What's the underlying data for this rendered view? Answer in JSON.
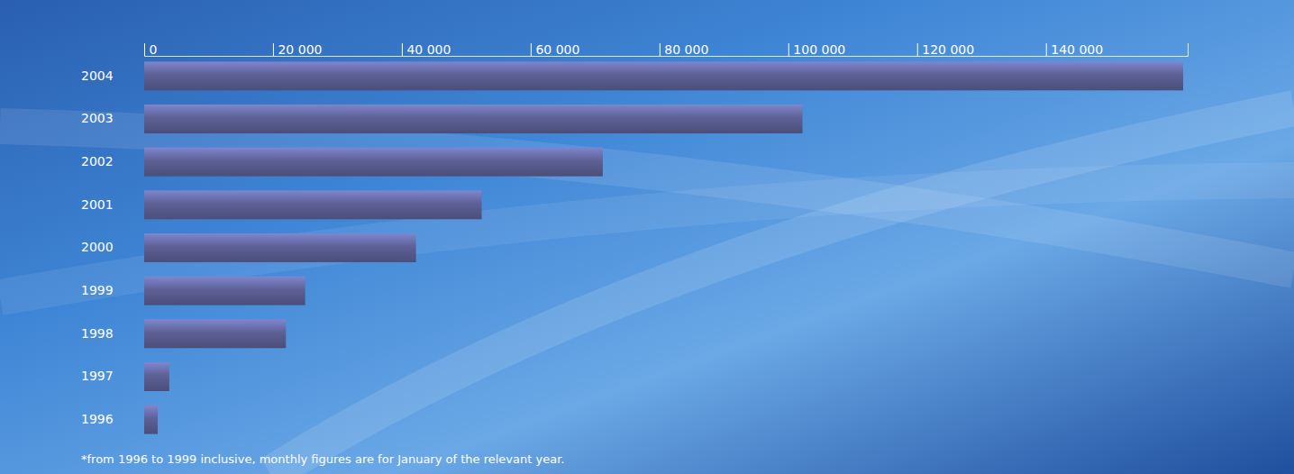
{
  "chart_data": {
    "type": "bar",
    "orientation": "horizontal",
    "categories": [
      "2004",
      "2003",
      "2002",
      "2001",
      "2000",
      "1999",
      "1998",
      "1997",
      "1996"
    ],
    "values": [
      161300,
      102200,
      71200,
      52400,
      42200,
      25000,
      22000,
      3900,
      2100
    ],
    "color": "#5d6196",
    "xlim": [
      0,
      162000
    ],
    "xticks": [
      0,
      {
        "value": 20000,
        "label": "20 000"
      },
      {
        "value": 40000,
        "label": "40 000"
      },
      {
        "value": 60000,
        "label": "60 000"
      },
      {
        "value": 80000,
        "label": "80 000"
      },
      {
        "value": 100000,
        "label": "100 000"
      },
      {
        "value": 120000,
        "label": "120 000"
      },
      {
        "value": 140000,
        "label": "140 000"
      }
    ],
    "grid": false,
    "annotations": [
      "*from 1996 to 1999 inclusive, monthly figures are for January of the relevant year."
    ]
  }
}
